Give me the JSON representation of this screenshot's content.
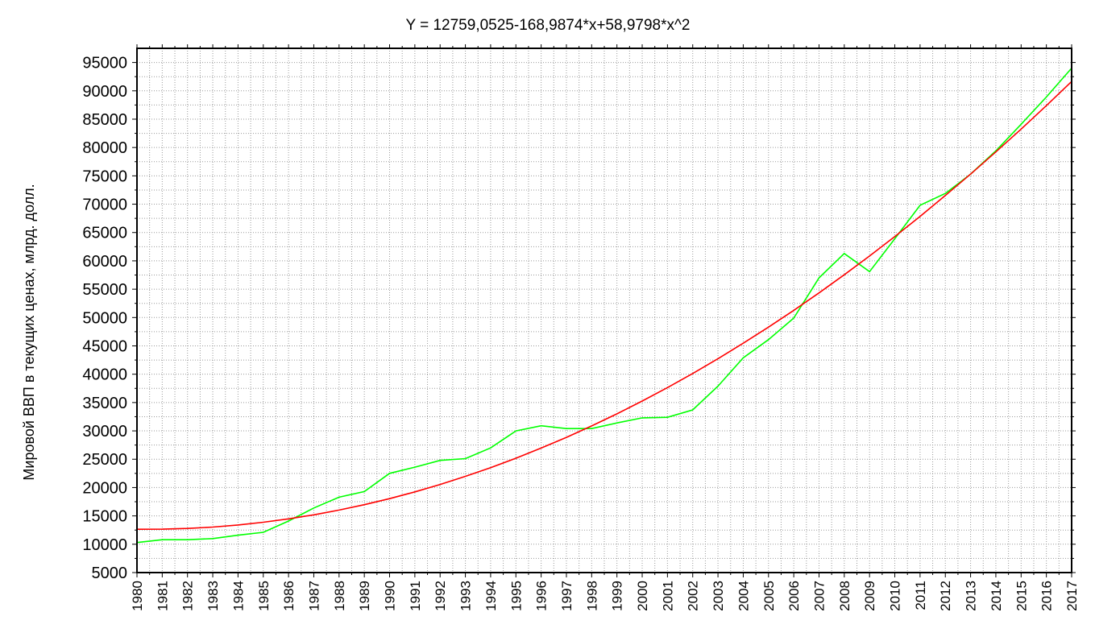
{
  "chart_data": {
    "type": "line",
    "title": "Y = 12759,0525-168,9874*x+58,9798*x^2",
    "xlabel": "",
    "ylabel": "Мировой ВВП в текущих ценах, млрд. долл.",
    "x": [
      "1980",
      "1981",
      "1982",
      "1983",
      "1984",
      "1985",
      "1986",
      "1987",
      "1988",
      "1989",
      "1990",
      "1991",
      "1992",
      "1993",
      "1994",
      "1995",
      "1996",
      "1997",
      "1998",
      "1999",
      "2000",
      "2001",
      "2002",
      "2003",
      "2004",
      "2005",
      "2006",
      "2007",
      "2008",
      "2009",
      "2010",
      "2011",
      "2012",
      "2013",
      "2014",
      "2015",
      "2016",
      "2017"
    ],
    "y_ticks": [
      "5000",
      "10000",
      "15000",
      "20000",
      "25000",
      "30000",
      "35000",
      "40000",
      "45000",
      "50000",
      "55000",
      "60000",
      "65000",
      "70000",
      "75000",
      "80000",
      "85000",
      "90000",
      "95000"
    ],
    "ylim": [
      5000,
      97500
    ],
    "grid": true,
    "series": [
      {
        "color": "#00ff00",
        "values": [
          10300,
          10800,
          10800,
          11000,
          11600,
          12100,
          14100,
          16400,
          18300,
          19300,
          22500,
          23600,
          24800,
          25100,
          27000,
          30000,
          30900,
          30400,
          30400,
          31400,
          32300,
          32400,
          33700,
          37900,
          42900,
          46100,
          49900,
          57000,
          61300,
          58100,
          63900,
          69800,
          71900,
          75300,
          79400,
          84100,
          88900,
          94000
        ]
      },
      {
        "color": "#ff0000",
        "values": [
          12649,
          12658,
          12785,
          13030,
          13393,
          13874,
          14473,
          15190,
          16025,
          16978,
          18050,
          19240,
          20548,
          21974,
          23518,
          25181,
          26961,
          28860,
          30877,
          33012,
          35265,
          37637,
          40126,
          42734,
          45460,
          48304,
          51266,
          54347,
          57545,
          60862,
          64297,
          67850,
          71521,
          75311,
          79218,
          83244,
          87388,
          91650
        ]
      }
    ]
  }
}
